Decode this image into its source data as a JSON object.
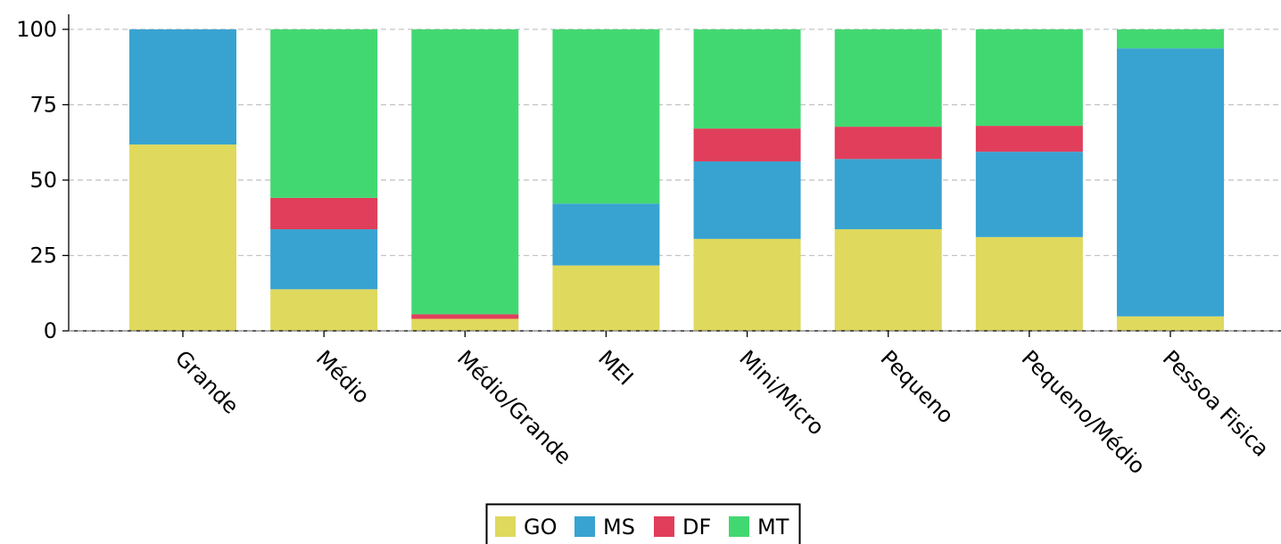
{
  "chart_data": {
    "type": "bar",
    "stacked": true,
    "categories": [
      "Grande",
      "Médio",
      "Médio/Grande",
      "MEI",
      "Mini/Micro",
      "Pequeno",
      "Pequeno/Médio",
      "Pessoa Fisica"
    ],
    "series": [
      {
        "name": "GO",
        "color": "#dfd95d",
        "values": [
          61.8,
          13.8,
          4.0,
          21.7,
          30.5,
          33.7,
          31.1,
          4.8
        ]
      },
      {
        "name": "MS",
        "color": "#38a3d1",
        "values": [
          38.2,
          19.9,
          0.0,
          20.5,
          25.7,
          23.3,
          28.3,
          88.9
        ]
      },
      {
        "name": "DF",
        "color": "#e03e5b",
        "values": [
          0.0,
          10.4,
          1.5,
          0.0,
          10.9,
          10.7,
          8.6,
          0.0
        ]
      },
      {
        "name": "MT",
        "color": "#42d871",
        "values": [
          0.0,
          55.9,
          94.5,
          57.8,
          32.9,
          32.3,
          32.0,
          6.3
        ]
      }
    ],
    "ylim": [
      0,
      105
    ],
    "yticks": [
      0,
      25,
      50,
      75,
      100
    ],
    "grid": "y-dashed",
    "legend_position": "bottom-center",
    "title": "",
    "xlabel": "",
    "ylabel": ""
  }
}
